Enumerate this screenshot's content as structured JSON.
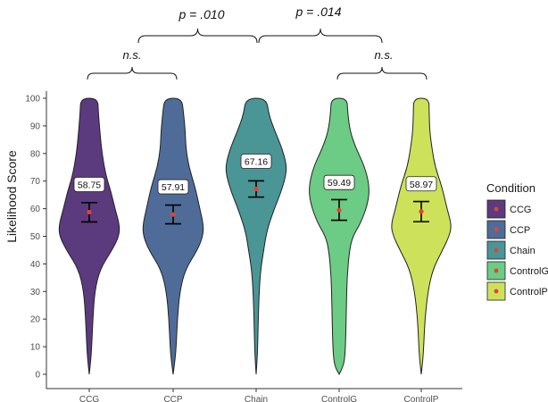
{
  "chart_data": {
    "type": "violin",
    "title": "",
    "xlabel": "",
    "ylabel": "Likelihood Score",
    "ylim": [
      0,
      100
    ],
    "yticks": [
      0,
      10,
      20,
      30,
      40,
      50,
      60,
      70,
      80,
      90,
      100
    ],
    "categories": [
      "CCG",
      "CCP",
      "Chain",
      "ControlG",
      "ControlP"
    ],
    "colors": [
      "#5c3a7e",
      "#4f6c99",
      "#4a9596",
      "#6ccb84",
      "#cde25a"
    ],
    "means": [
      58.75,
      57.91,
      67.16,
      59.49,
      58.97
    ],
    "mean_labels": [
      "58.75",
      "57.91",
      "67.16",
      "59.49",
      "58.97"
    ],
    "ci_low": [
      55.2,
      54.5,
      64.2,
      55.8,
      55.3
    ],
    "ci_high": [
      62.2,
      61.3,
      70.1,
      63.3,
      62.6
    ],
    "legend": {
      "title": "Condition",
      "position": "right",
      "entries": [
        "CCG",
        "CCP",
        "Chain",
        "ControlG",
        "ControlP"
      ]
    },
    "grid": false,
    "annotations": {
      "top": [
        {
          "label": "p  =  .010",
          "from": "CCG-CCP",
          "to": "Chain"
        },
        {
          "label": "p  =  .014",
          "from": "Chain",
          "to": "ControlG-ControlP"
        }
      ],
      "pairs": [
        {
          "label": "n.s.",
          "from": "CCG",
          "to": "CCP"
        },
        {
          "label": "n.s.",
          "from": "ControlG",
          "to": "ControlP"
        }
      ]
    },
    "violin_profiles": [
      [
        [
          0,
          0
        ],
        [
          5,
          0.05
        ],
        [
          10,
          0.08
        ],
        [
          20,
          0.12
        ],
        [
          30,
          0.18
        ],
        [
          38,
          0.35
        ],
        [
          45,
          0.75
        ],
        [
          50,
          0.98
        ],
        [
          54,
          1.0
        ],
        [
          60,
          0.85
        ],
        [
          66,
          0.72
        ],
        [
          72,
          0.55
        ],
        [
          80,
          0.42
        ],
        [
          88,
          0.35
        ],
        [
          95,
          0.3
        ],
        [
          100,
          0.28
        ]
      ],
      [
        [
          0,
          0
        ],
        [
          5,
          0.06
        ],
        [
          10,
          0.1
        ],
        [
          20,
          0.14
        ],
        [
          30,
          0.22
        ],
        [
          38,
          0.4
        ],
        [
          45,
          0.8
        ],
        [
          50,
          0.98
        ],
        [
          54,
          1.0
        ],
        [
          60,
          0.88
        ],
        [
          68,
          0.72
        ],
        [
          75,
          0.52
        ],
        [
          82,
          0.42
        ],
        [
          88,
          0.4
        ],
        [
          95,
          0.34
        ],
        [
          100,
          0.28
        ]
      ],
      [
        [
          0,
          0
        ],
        [
          5,
          0.03
        ],
        [
          10,
          0.05
        ],
        [
          20,
          0.07
        ],
        [
          30,
          0.1
        ],
        [
          38,
          0.15
        ],
        [
          45,
          0.25
        ],
        [
          52,
          0.35
        ],
        [
          60,
          0.6
        ],
        [
          66,
          0.82
        ],
        [
          72,
          0.98
        ],
        [
          76,
          1.0
        ],
        [
          82,
          0.85
        ],
        [
          88,
          0.62
        ],
        [
          94,
          0.42
        ],
        [
          100,
          0.34
        ]
      ],
      [
        [
          0,
          0
        ],
        [
          3,
          0.15
        ],
        [
          8,
          0.2
        ],
        [
          15,
          0.22
        ],
        [
          25,
          0.24
        ],
        [
          35,
          0.26
        ],
        [
          45,
          0.34
        ],
        [
          50,
          0.45
        ],
        [
          55,
          0.72
        ],
        [
          62,
          0.95
        ],
        [
          68,
          1.0
        ],
        [
          75,
          0.85
        ],
        [
          82,
          0.55
        ],
        [
          88,
          0.36
        ],
        [
          95,
          0.28
        ],
        [
          100,
          0.26
        ]
      ],
      [
        [
          0,
          0
        ],
        [
          5,
          0.05
        ],
        [
          10,
          0.08
        ],
        [
          20,
          0.12
        ],
        [
          30,
          0.22
        ],
        [
          38,
          0.38
        ],
        [
          45,
          0.7
        ],
        [
          50,
          0.92
        ],
        [
          54,
          1.0
        ],
        [
          60,
          0.85
        ],
        [
          68,
          0.68
        ],
        [
          75,
          0.46
        ],
        [
          82,
          0.35
        ],
        [
          88,
          0.28
        ],
        [
          95,
          0.26
        ],
        [
          100,
          0.25
        ]
      ]
    ]
  }
}
